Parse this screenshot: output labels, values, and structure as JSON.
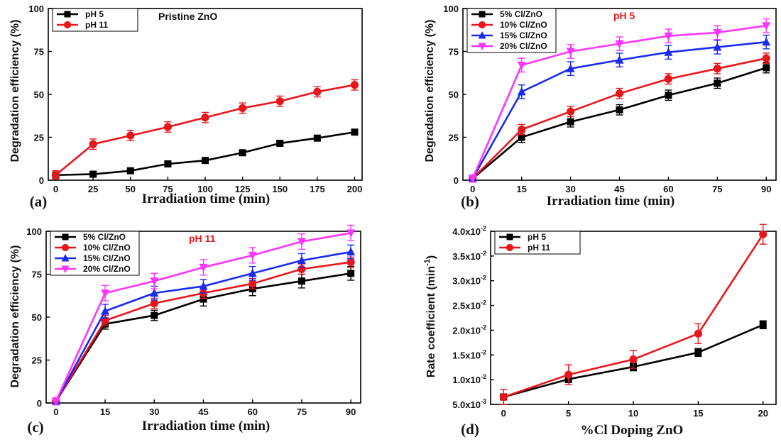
{
  "chart_data": [
    {
      "type": "line",
      "panel_label": "(a)",
      "annotation": "Pristine ZnO",
      "annotation_color": "#111111",
      "xlabel": "Irradiation time (min)",
      "ylabel": "Degradation efficiency (%)",
      "xlim": [
        -5,
        205
      ],
      "ylim": [
        0,
        100
      ],
      "xticks": [
        0,
        25,
        50,
        75,
        100,
        125,
        150,
        175,
        200
      ],
      "yticks": [
        0,
        25,
        50,
        75,
        100
      ],
      "legend_position": "top-left",
      "series": [
        {
          "name": "pH 5",
          "color": "#000000",
          "marker": "square",
          "x": [
            0,
            25,
            50,
            75,
            100,
            125,
            150,
            175,
            200
          ],
          "y": [
            3,
            3.5,
            5.5,
            9.5,
            11.5,
            16,
            21.5,
            24.5,
            28
          ],
          "err": [
            1,
            1,
            1,
            1,
            1,
            1,
            1,
            1,
            1
          ]
        },
        {
          "name": "pH 11",
          "color": "#e8161a",
          "marker": "circle",
          "x": [
            0,
            25,
            50,
            75,
            100,
            125,
            150,
            175,
            200
          ],
          "y": [
            3,
            21,
            26,
            31,
            36.5,
            42,
            46,
            51.5,
            55.5
          ],
          "err": [
            2.5,
            3,
            3,
            3,
            3,
            3,
            3,
            3,
            3
          ]
        }
      ]
    },
    {
      "type": "line",
      "panel_label": "(b)",
      "annotation": "pH 5",
      "annotation_color": "#e8161a",
      "xlabel": "Irradiation time (min)",
      "ylabel": "Degradation efficiency (%)",
      "xlim": [
        -3,
        93
      ],
      "ylim": [
        0,
        100
      ],
      "xticks": [
        0,
        15,
        30,
        45,
        60,
        75,
        90
      ],
      "yticks": [
        0,
        25,
        50,
        75,
        100
      ],
      "legend_position": "top-left",
      "series": [
        {
          "name": "5% Cl/ZnO",
          "color": "#000000",
          "marker": "square",
          "x": [
            0,
            15,
            30,
            45,
            60,
            75,
            90
          ],
          "y": [
            1,
            25,
            34,
            41,
            49.5,
            56.5,
            65.5
          ],
          "err": [
            2,
            3,
            3,
            3,
            3,
            3,
            3
          ]
        },
        {
          "name": "10% Cl/ZnO",
          "color": "#e8161a",
          "marker": "circle",
          "x": [
            0,
            15,
            30,
            45,
            60,
            75,
            90
          ],
          "y": [
            1,
            29.5,
            40,
            50.5,
            59,
            65,
            71
          ],
          "err": [
            2,
            3,
            3,
            3,
            3,
            3,
            3
          ]
        },
        {
          "name": "15% Cl/ZnO",
          "color": "#1a2bf0",
          "marker": "triangle",
          "x": [
            0,
            15,
            30,
            45,
            60,
            75,
            90
          ],
          "y": [
            1,
            51.5,
            65,
            70,
            74.5,
            77.5,
            80.5
          ],
          "err": [
            2,
            4,
            4,
            4,
            4,
            4,
            4
          ]
        },
        {
          "name": "20% Cl/ZnO",
          "color": "#ff33ff",
          "marker": "triangle-down",
          "x": [
            0,
            15,
            30,
            45,
            60,
            75,
            90
          ],
          "y": [
            1,
            67,
            75,
            79.5,
            84,
            86,
            90
          ],
          "err": [
            2,
            4,
            4,
            4,
            4,
            4,
            4
          ]
        }
      ]
    },
    {
      "type": "line",
      "panel_label": "(c)",
      "annotation": "pH 11",
      "annotation_color": "#e8161a",
      "xlabel": "Irradiation time (min)",
      "ylabel": "Degradation efficiency (%)",
      "xlim": [
        -3,
        93
      ],
      "ylim": [
        0,
        100
      ],
      "xticks": [
        0,
        15,
        30,
        45,
        60,
        75,
        90
      ],
      "yticks": [
        0,
        25,
        50,
        75,
        100
      ],
      "legend_position": "top-left",
      "series": [
        {
          "name": "5% Cl/ZnO",
          "color": "#000000",
          "marker": "square",
          "x": [
            0,
            15,
            30,
            45,
            60,
            75,
            90
          ],
          "y": [
            1,
            46,
            51,
            60.5,
            66.5,
            71,
            75.5
          ],
          "err": [
            2,
            3,
            3,
            4,
            4,
            4,
            4
          ]
        },
        {
          "name": "10% Cl/ZnO",
          "color": "#e8161a",
          "marker": "circle",
          "x": [
            0,
            15,
            30,
            45,
            60,
            75,
            90
          ],
          "y": [
            1,
            48,
            58,
            64,
            69.5,
            78,
            82
          ],
          "err": [
            2,
            3,
            3,
            3,
            3,
            3,
            3
          ]
        },
        {
          "name": "15% Cl/ZnO",
          "color": "#1a2bf0",
          "marker": "triangle",
          "x": [
            0,
            15,
            30,
            45,
            60,
            75,
            90
          ],
          "y": [
            1,
            53.5,
            64,
            68,
            75.5,
            83,
            88
          ],
          "err": [
            2,
            4,
            4,
            4,
            4,
            4,
            4
          ]
        },
        {
          "name": "20% Cl/ZnO",
          "color": "#ff33ff",
          "marker": "triangle-down",
          "x": [
            0,
            15,
            30,
            45,
            60,
            75,
            90
          ],
          "y": [
            1,
            64,
            71,
            79,
            86,
            94,
            99
          ],
          "err": [
            2,
            4.5,
            4.5,
            4.5,
            4.5,
            4.5,
            4.5
          ]
        }
      ]
    },
    {
      "type": "line",
      "panel_label": "(d)",
      "annotation": "",
      "annotation_color": "#111111",
      "xlabel": "%Cl Doping ZnO",
      "ylabel": "Rate coefficient (min-1)",
      "ylabel_main": "Rate coefficient (min",
      "ylabel_sup": "-1",
      "ylabel_close": ")",
      "xlim": [
        -1,
        21
      ],
      "ylim": [
        0.005,
        0.04
      ],
      "xticks": [
        0,
        5,
        10,
        15,
        20
      ],
      "yticks": [
        0.005,
        0.01,
        0.015,
        0.02,
        0.025,
        0.03,
        0.035,
        0.04
      ],
      "ytick_mantissa": [
        "5.0x10",
        "1.0x10",
        "1.5x10",
        "2.0x10",
        "2.5x10",
        "3.0x10",
        "3.5x10",
        "4.0x10"
      ],
      "ytick_exp": [
        "-3",
        "-2",
        "-2",
        "-2",
        "-2",
        "-2",
        "-2",
        "-2"
      ],
      "legend_position": "top-left",
      "series": [
        {
          "name": "pH 5",
          "color": "#000000",
          "marker": "square",
          "x": [
            0,
            5,
            10,
            15,
            20
          ],
          "y": [
            0.0065,
            0.0101,
            0.0126,
            0.0155,
            0.0211
          ],
          "err": [
            0.0006,
            0.0007,
            0.0008,
            0.0008,
            0.0008
          ]
        },
        {
          "name": "pH 11",
          "color": "#e8161a",
          "marker": "circle",
          "x": [
            0,
            5,
            10,
            15,
            20
          ],
          "y": [
            0.0065,
            0.011,
            0.0141,
            0.0193,
            0.0394
          ],
          "err": [
            0.0015,
            0.002,
            0.0018,
            0.002,
            0.002
          ]
        }
      ]
    }
  ]
}
